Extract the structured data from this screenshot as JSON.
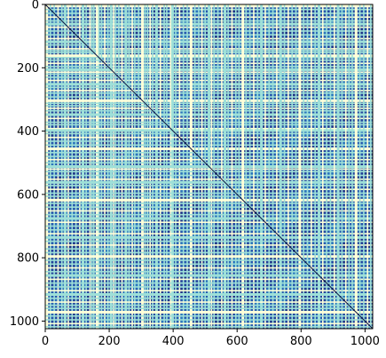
{
  "chart_data": {
    "type": "heatmap",
    "title": "",
    "xlabel": "",
    "ylabel": "",
    "xlim": [
      0,
      1024
    ],
    "ylim": [
      1024,
      0
    ],
    "xticks": [
      0,
      200,
      400,
      600,
      800,
      1000
    ],
    "yticks": [
      0,
      200,
      400,
      600,
      800,
      1000
    ],
    "xtick_labels": [
      "0",
      "200",
      "400",
      "600",
      "800",
      "1000"
    ],
    "ytick_labels": [
      "0",
      "200",
      "400",
      "600",
      "800",
      "1000"
    ],
    "colormap": [
      "#1e2a78",
      "#2447a0",
      "#2a6cc0",
      "#33a0d8",
      "#9fe0d8",
      "#ffffd9"
    ],
    "description_values": {
      "matrix_size": 1024,
      "bright_bands": [
        5,
        16,
        28,
        40,
        52,
        62,
        72,
        84,
        96,
        108,
        118,
        128,
        140,
        146,
        152,
        162,
        168,
        176,
        186,
        196,
        206,
        214,
        220,
        230,
        240,
        252,
        262,
        272,
        280,
        292,
        304,
        312,
        320,
        328,
        336,
        348,
        360,
        372,
        380,
        392,
        398,
        408,
        420,
        432,
        444,
        456,
        468,
        480,
        490,
        500,
        512,
        520,
        528,
        540,
        552,
        562,
        572,
        584,
        596,
        606,
        618,
        628,
        640,
        652,
        664,
        676,
        688,
        700,
        712,
        724,
        736,
        748,
        760,
        772,
        784,
        796,
        808,
        820,
        832,
        844,
        856,
        868,
        880,
        892,
        904,
        916,
        928,
        940,
        950,
        960,
        972,
        984,
        996,
        1008,
        1018
      ]
    },
    "grid": false,
    "legend": "none"
  }
}
